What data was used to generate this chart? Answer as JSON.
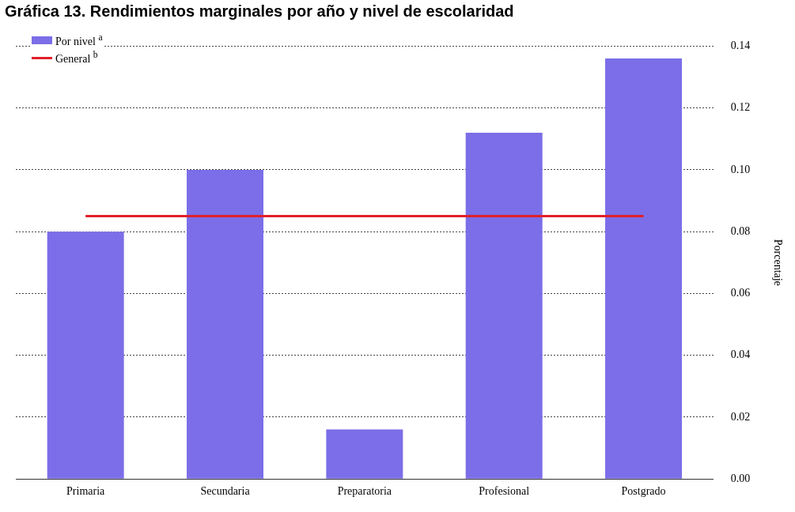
{
  "chart_data": {
    "type": "bar",
    "title": "Gráfica 13. Rendimientos marginales por año y nivel de escolaridad",
    "ylabel": "Porcentaje",
    "categories": [
      "Primaria",
      "Secundaria",
      "Preparatoria",
      "Profesional",
      "Postgrado"
    ],
    "series": [
      {
        "name": "Por nivel $^{a}$",
        "color": "#7b6ee8",
        "values": [
          0.08,
          0.1,
          0.016,
          0.112,
          0.136
        ]
      },
      {
        "name": "General $^{b}$",
        "type": "line",
        "color": "#e0202a",
        "values": [
          0.085,
          0.085,
          0.085,
          0.085,
          0.085
        ]
      }
    ],
    "ylim": [
      0,
      0.14
    ],
    "yticks": [
      {
        "value": 0,
        "label": "0.00"
      },
      0.02,
      0.04,
      0.06,
      0.08,
      {
        "value": 0.1,
        "label": "0.10"
      },
      0.12,
      0.14
    ],
    "grid": "y",
    "legend": "top left",
    "marker": "none"
  }
}
